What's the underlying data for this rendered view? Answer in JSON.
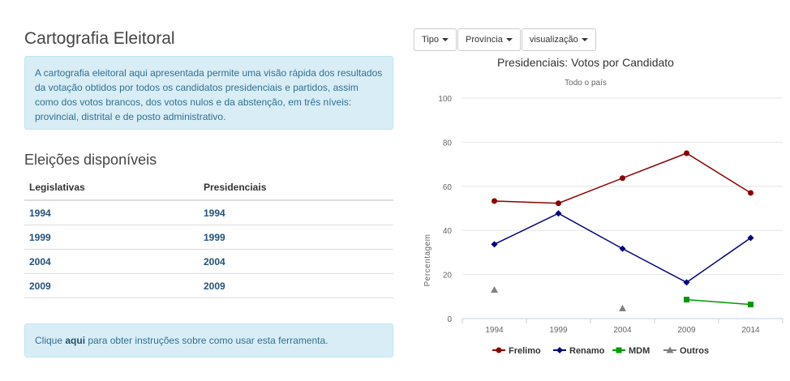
{
  "page_title": "Cartografia Eleitoral",
  "intro_text": "A cartografia eleitoral aqui apresentada permite uma visão rápida dos resultados da votação obtidos por todos os candidatos presidenciais e partidos, assim como dos votos brancos, dos votos nulos e da abstenção, em três níveis: provincial, distrital e de posto administrativo.",
  "elections": {
    "title": "Eleições disponíveis",
    "headers": [
      "Legislativas",
      "Presidenciais"
    ],
    "rows": [
      [
        "1994",
        "1994"
      ],
      [
        "1999",
        "1999"
      ],
      [
        "2004",
        "2004"
      ],
      [
        "2009",
        "2009"
      ]
    ]
  },
  "help": {
    "prefix": "Clique ",
    "link": "aqui",
    "suffix": " para obter instruções sobre como usar esta ferramenta."
  },
  "toolbar": {
    "tipo": "Tipo",
    "provincia": "Província",
    "visualizacao": "visualização"
  },
  "chart_data": {
    "type": "line",
    "title": "Presidenciais: Votos por Candidato",
    "subtitle": "Todo o país",
    "ylabel": "Percentagem",
    "xlabel": "",
    "ylim": [
      0,
      100
    ],
    "yticks": [
      0,
      20,
      40,
      60,
      80,
      100
    ],
    "categories": [
      "1994",
      "1999",
      "2004",
      "2009",
      "2014"
    ],
    "grid": true,
    "legend_position": "bottom",
    "series": [
      {
        "name": "Frelimo",
        "color": "#8b0000",
        "marker": "circle",
        "values": [
          53.3,
          52.3,
          63.7,
          75.0,
          57.0
        ]
      },
      {
        "name": "Renamo",
        "color": "#000080",
        "marker": "diamond",
        "values": [
          33.7,
          47.7,
          31.7,
          16.4,
          36.6
        ]
      },
      {
        "name": "MDM",
        "color": "#009900",
        "marker": "square",
        "values": [
          null,
          null,
          null,
          8.6,
          6.4
        ]
      },
      {
        "name": "Outros",
        "color": "#808080",
        "marker": "triangle",
        "values": [
          13.0,
          null,
          4.6,
          null,
          null
        ]
      }
    ]
  }
}
